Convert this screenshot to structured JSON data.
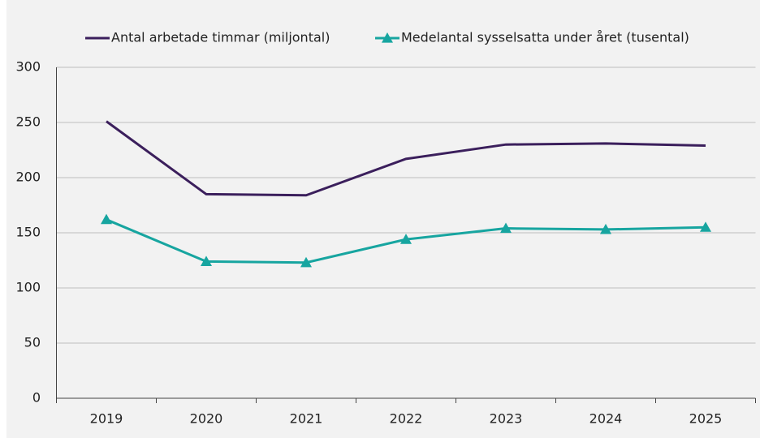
{
  "chart_data": {
    "type": "line",
    "categories": [
      "2019",
      "2020",
      "2021",
      "2022",
      "2023",
      "2024",
      "2025"
    ],
    "series": [
      {
        "name": "Antal arbetade timmar (miljontal)",
        "color": "#3b1f5c",
        "marker": "none",
        "values": [
          251,
          185,
          184,
          217,
          230,
          231,
          229
        ]
      },
      {
        "name": "Medelantal sysselsatta under året (tusental)",
        "color": "#17a5a0",
        "marker": "triangle",
        "values": [
          162,
          124,
          123,
          144,
          154,
          153,
          155
        ]
      }
    ],
    "ylim": [
      0,
      300
    ],
    "yticks": [
      0,
      50,
      100,
      150,
      200,
      250,
      300
    ],
    "grid": true,
    "legend": "top"
  }
}
